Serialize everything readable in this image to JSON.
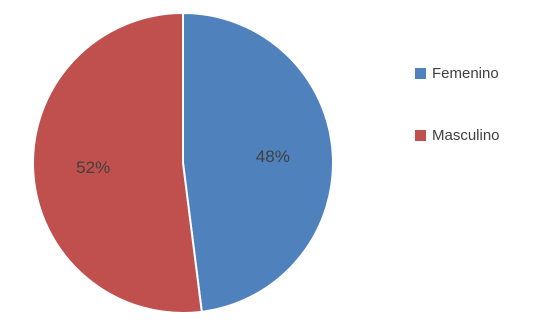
{
  "chart_data": {
    "type": "pie",
    "title": "",
    "legend_position": "right",
    "categories": [
      "Femenino",
      "Masculino"
    ],
    "values": [
      48,
      52
    ],
    "labels": [
      "48%",
      "52%"
    ],
    "colors": [
      "#4f81bd",
      "#c0504d"
    ]
  }
}
